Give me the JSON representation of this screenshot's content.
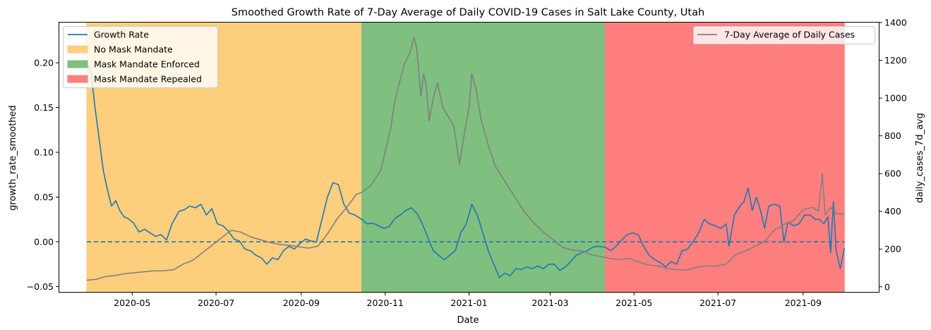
{
  "chart_data": {
    "type": "line",
    "title": "Smoothed Growth Rate of 7-Day Average of Daily COVID-19 Cases in Salt Lake County, Utah",
    "xlabel": "Date",
    "ylabel_left": "growth_rate_smoothed",
    "ylabel_right": "daily_cases_7d_avg",
    "x_ticks": [
      "2020-05",
      "2020-07",
      "2020-09",
      "2020-11",
      "2021-01",
      "2021-03",
      "2021-05",
      "2021-07",
      "2021-09"
    ],
    "xlim": [
      "2020-03-09",
      "2021-10-26"
    ],
    "ylim_left": [
      -0.056,
      0.245
    ],
    "yticks_left": [
      "−0.05",
      "0.00",
      "0.05",
      "0.10",
      "0.15",
      "0.20"
    ],
    "ylim_right": [
      -27,
      1400
    ],
    "yticks_right": [
      "0",
      "200",
      "400",
      "600",
      "800",
      "1000",
      "1200",
      "1400"
    ],
    "grid": false,
    "legends": [
      {
        "placement": "top-left",
        "entries": [
          "Growth Rate",
          "No Mask Mandate",
          "Mask Mandate Enforced",
          "Mask Mandate Repealed"
        ]
      },
      {
        "placement": "top-right",
        "entries": [
          "7-Day Average of Daily Cases"
        ]
      }
    ],
    "periods": [
      {
        "name": "No Mask Mandate",
        "start": "2020-03-29",
        "end": "2020-10-15",
        "color": "#fdcf7d"
      },
      {
        "name": "Mask Mandate Enforced",
        "start": "2020-10-15",
        "end": "2021-04-10",
        "color": "#7fbf7f"
      },
      {
        "name": "Mask Mandate Repealed",
        "start": "2021-04-10",
        "end": "2021-10-01",
        "color": "#ff7f7f"
      }
    ],
    "reference_line": {
      "y": 0.0,
      "style": "dashed",
      "color": "#1f77b4"
    },
    "series": [
      {
        "name": "Growth Rate",
        "axis": "left",
        "color": "#1f77b4",
        "points": [
          [
            "2020-03-29",
            0.2
          ],
          [
            "2020-04-01",
            0.19
          ],
          [
            "2020-04-04",
            0.15
          ],
          [
            "2020-04-07",
            0.115
          ],
          [
            "2020-04-10",
            0.08
          ],
          [
            "2020-04-13",
            0.058
          ],
          [
            "2020-04-16",
            0.04
          ],
          [
            "2020-04-19",
            0.046
          ],
          [
            "2020-04-22",
            0.035
          ],
          [
            "2020-04-25",
            0.028
          ],
          [
            "2020-04-28",
            0.026
          ],
          [
            "2020-05-02",
            0.021
          ],
          [
            "2020-05-06",
            0.011
          ],
          [
            "2020-05-10",
            0.014
          ],
          [
            "2020-05-14",
            0.01
          ],
          [
            "2020-05-18",
            0.006
          ],
          [
            "2020-05-22",
            0.008
          ],
          [
            "2020-05-26",
            0.002
          ],
          [
            "2020-05-30",
            0.02
          ],
          [
            "2020-06-04",
            0.034
          ],
          [
            "2020-06-08",
            0.036
          ],
          [
            "2020-06-12",
            0.04
          ],
          [
            "2020-06-16",
            0.038
          ],
          [
            "2020-06-20",
            0.042
          ],
          [
            "2020-06-24",
            0.03
          ],
          [
            "2020-06-28",
            0.037
          ],
          [
            "2020-07-02",
            0.02
          ],
          [
            "2020-07-06",
            0.018
          ],
          [
            "2020-07-10",
            0.012
          ],
          [
            "2020-07-14",
            0.003
          ],
          [
            "2020-07-18",
            0.001
          ],
          [
            "2020-07-22",
            -0.008
          ],
          [
            "2020-07-26",
            -0.01
          ],
          [
            "2020-07-30",
            -0.015
          ],
          [
            "2020-08-03",
            -0.018
          ],
          [
            "2020-08-07",
            -0.025
          ],
          [
            "2020-08-11",
            -0.018
          ],
          [
            "2020-08-15",
            -0.02
          ],
          [
            "2020-08-19",
            -0.01
          ],
          [
            "2020-08-23",
            -0.005
          ],
          [
            "2020-08-27",
            -0.008
          ],
          [
            "2020-08-31",
            -0.002
          ],
          [
            "2020-09-04",
            0.003
          ],
          [
            "2020-09-08",
            0.001
          ],
          [
            "2020-09-12",
            0.0
          ],
          [
            "2020-09-16",
            0.025
          ],
          [
            "2020-09-20",
            0.05
          ],
          [
            "2020-09-24",
            0.066
          ],
          [
            "2020-09-28",
            0.064
          ],
          [
            "2020-10-02",
            0.042
          ],
          [
            "2020-10-06",
            0.032
          ],
          [
            "2020-10-10",
            0.03
          ],
          [
            "2020-10-15",
            0.025
          ],
          [
            "2020-10-19",
            0.02
          ],
          [
            "2020-10-23",
            0.021
          ],
          [
            "2020-10-27",
            0.018
          ],
          [
            "2020-10-31",
            0.015
          ],
          [
            "2020-11-04",
            0.017
          ],
          [
            "2020-11-08",
            0.026
          ],
          [
            "2020-11-12",
            0.03
          ],
          [
            "2020-11-16",
            0.035
          ],
          [
            "2020-11-20",
            0.038
          ],
          [
            "2020-11-24",
            0.032
          ],
          [
            "2020-11-28",
            0.02
          ],
          [
            "2020-12-02",
            0.005
          ],
          [
            "2020-12-06",
            -0.01
          ],
          [
            "2020-12-10",
            -0.015
          ],
          [
            "2020-12-14",
            -0.02
          ],
          [
            "2020-12-18",
            -0.015
          ],
          [
            "2020-12-22",
            -0.01
          ],
          [
            "2020-12-26",
            0.01
          ],
          [
            "2020-12-30",
            0.02
          ],
          [
            "2021-01-03",
            0.042
          ],
          [
            "2021-01-07",
            0.03
          ],
          [
            "2021-01-11",
            0.01
          ],
          [
            "2021-01-15",
            -0.01
          ],
          [
            "2021-01-19",
            -0.025
          ],
          [
            "2021-01-23",
            -0.04
          ],
          [
            "2021-01-27",
            -0.035
          ],
          [
            "2021-01-31",
            -0.038
          ],
          [
            "2021-02-04",
            -0.03
          ],
          [
            "2021-02-08",
            -0.031
          ],
          [
            "2021-02-12",
            -0.028
          ],
          [
            "2021-02-16",
            -0.03
          ],
          [
            "2021-02-20",
            -0.027
          ],
          [
            "2021-02-24",
            -0.03
          ],
          [
            "2021-02-28",
            -0.025
          ],
          [
            "2021-03-04",
            -0.025
          ],
          [
            "2021-03-08",
            -0.032
          ],
          [
            "2021-03-12",
            -0.028
          ],
          [
            "2021-03-16",
            -0.022
          ],
          [
            "2021-03-20",
            -0.015
          ],
          [
            "2021-03-24",
            -0.012
          ],
          [
            "2021-03-28",
            -0.01
          ],
          [
            "2021-04-01",
            -0.006
          ],
          [
            "2021-04-05",
            -0.005
          ],
          [
            "2021-04-10",
            -0.006
          ],
          [
            "2021-04-14",
            -0.01
          ],
          [
            "2021-04-18",
            -0.005
          ],
          [
            "2021-04-22",
            0.002
          ],
          [
            "2021-04-26",
            0.008
          ],
          [
            "2021-04-30",
            0.01
          ],
          [
            "2021-05-04",
            0.008
          ],
          [
            "2021-05-08",
            -0.005
          ],
          [
            "2021-05-12",
            -0.015
          ],
          [
            "2021-05-16",
            -0.02
          ],
          [
            "2021-05-20",
            -0.023
          ],
          [
            "2021-05-24",
            -0.028
          ],
          [
            "2021-05-28",
            -0.022
          ],
          [
            "2021-06-01",
            -0.025
          ],
          [
            "2021-06-05",
            -0.01
          ],
          [
            "2021-06-09",
            -0.008
          ],
          [
            "2021-06-13",
            0.0
          ],
          [
            "2021-06-17",
            0.01
          ],
          [
            "2021-06-21",
            0.025
          ],
          [
            "2021-06-25",
            0.02
          ],
          [
            "2021-06-29",
            0.018
          ],
          [
            "2021-07-03",
            0.015
          ],
          [
            "2021-07-07",
            0.02
          ],
          [
            "2021-07-09",
            -0.005
          ],
          [
            "2021-07-13",
            0.03
          ],
          [
            "2021-07-17",
            0.04
          ],
          [
            "2021-07-20",
            0.045
          ],
          [
            "2021-07-23",
            0.06
          ],
          [
            "2021-07-26",
            0.035
          ],
          [
            "2021-07-29",
            0.05
          ],
          [
            "2021-08-01",
            0.035
          ],
          [
            "2021-08-04",
            0.015
          ],
          [
            "2021-08-07",
            0.04
          ],
          [
            "2021-08-11",
            0.042
          ],
          [
            "2021-08-15",
            0.04
          ],
          [
            "2021-08-18",
            0.0
          ],
          [
            "2021-08-21",
            0.022
          ],
          [
            "2021-08-25",
            0.018
          ],
          [
            "2021-08-29",
            0.02
          ],
          [
            "2021-09-02",
            0.03
          ],
          [
            "2021-09-06",
            0.03
          ],
          [
            "2021-09-10",
            0.025
          ],
          [
            "2021-09-13",
            0.025
          ],
          [
            "2021-09-16",
            0.02
          ],
          [
            "2021-09-19",
            0.028
          ],
          [
            "2021-09-21",
            -0.012
          ],
          [
            "2021-09-23",
            0.045
          ],
          [
            "2021-09-25",
            -0.01
          ],
          [
            "2021-09-28",
            -0.03
          ],
          [
            "2021-10-01",
            -0.007
          ]
        ]
      },
      {
        "name": "7-Day Average of Daily Cases",
        "axis": "right",
        "color": "#808080",
        "points": [
          [
            "2020-03-29",
            35
          ],
          [
            "2020-04-05",
            40
          ],
          [
            "2020-04-12",
            55
          ],
          [
            "2020-04-19",
            60
          ],
          [
            "2020-04-26",
            70
          ],
          [
            "2020-05-03",
            75
          ],
          [
            "2020-05-10",
            80
          ],
          [
            "2020-05-17",
            85
          ],
          [
            "2020-05-24",
            85
          ],
          [
            "2020-05-31",
            90
          ],
          [
            "2020-06-07",
            120
          ],
          [
            "2020-06-14",
            140
          ],
          [
            "2020-06-21",
            180
          ],
          [
            "2020-06-28",
            220
          ],
          [
            "2020-07-05",
            260
          ],
          [
            "2020-07-12",
            300
          ],
          [
            "2020-07-19",
            290
          ],
          [
            "2020-07-26",
            265
          ],
          [
            "2020-08-02",
            250
          ],
          [
            "2020-08-09",
            235
          ],
          [
            "2020-08-16",
            225
          ],
          [
            "2020-08-23",
            220
          ],
          [
            "2020-08-30",
            212
          ],
          [
            "2020-09-06",
            205
          ],
          [
            "2020-09-13",
            215
          ],
          [
            "2020-09-20",
            280
          ],
          [
            "2020-09-27",
            360
          ],
          [
            "2020-10-04",
            420
          ],
          [
            "2020-10-11",
            490
          ],
          [
            "2020-10-15",
            500
          ],
          [
            "2020-10-22",
            540
          ],
          [
            "2020-10-29",
            620
          ],
          [
            "2020-11-05",
            840
          ],
          [
            "2020-11-08",
            980
          ],
          [
            "2020-11-12",
            1100
          ],
          [
            "2020-11-15",
            1180
          ],
          [
            "2020-11-19",
            1240
          ],
          [
            "2020-11-22",
            1320
          ],
          [
            "2020-11-24",
            1260
          ],
          [
            "2020-11-27",
            1010
          ],
          [
            "2020-11-29",
            1130
          ],
          [
            "2020-12-01",
            1060
          ],
          [
            "2020-12-03",
            880
          ],
          [
            "2020-12-06",
            1000
          ],
          [
            "2020-12-09",
            1080
          ],
          [
            "2020-12-13",
            950
          ],
          [
            "2020-12-17",
            900
          ],
          [
            "2020-12-21",
            850
          ],
          [
            "2020-12-25",
            650
          ],
          [
            "2020-12-29",
            830
          ],
          [
            "2021-01-01",
            950
          ],
          [
            "2021-01-03",
            1130
          ],
          [
            "2021-01-06",
            1050
          ],
          [
            "2021-01-10",
            880
          ],
          [
            "2021-01-15",
            750
          ],
          [
            "2021-01-20",
            640
          ],
          [
            "2021-01-27",
            560
          ],
          [
            "2021-02-03",
            480
          ],
          [
            "2021-02-10",
            400
          ],
          [
            "2021-02-17",
            340
          ],
          [
            "2021-02-24",
            290
          ],
          [
            "2021-03-03",
            250
          ],
          [
            "2021-03-10",
            210
          ],
          [
            "2021-03-17",
            195
          ],
          [
            "2021-03-24",
            190
          ],
          [
            "2021-03-31",
            170
          ],
          [
            "2021-04-07",
            160
          ],
          [
            "2021-04-14",
            150
          ],
          [
            "2021-04-21",
            145
          ],
          [
            "2021-04-28",
            150
          ],
          [
            "2021-05-05",
            130
          ],
          [
            "2021-05-12",
            115
          ],
          [
            "2021-05-19",
            110
          ],
          [
            "2021-05-26",
            95
          ],
          [
            "2021-06-02",
            90
          ],
          [
            "2021-06-09",
            90
          ],
          [
            "2021-06-16",
            105
          ],
          [
            "2021-06-23",
            110
          ],
          [
            "2021-06-30",
            110
          ],
          [
            "2021-07-07",
            120
          ],
          [
            "2021-07-14",
            170
          ],
          [
            "2021-07-21",
            190
          ],
          [
            "2021-07-28",
            215
          ],
          [
            "2021-08-04",
            240
          ],
          [
            "2021-08-11",
            300
          ],
          [
            "2021-08-18",
            330
          ],
          [
            "2021-08-25",
            350
          ],
          [
            "2021-09-01",
            410
          ],
          [
            "2021-09-08",
            420
          ],
          [
            "2021-09-12",
            400
          ],
          [
            "2021-09-15",
            600
          ],
          [
            "2021-09-17",
            380
          ],
          [
            "2021-09-21",
            420
          ],
          [
            "2021-09-25",
            390
          ],
          [
            "2021-10-01",
            385
          ]
        ]
      }
    ]
  }
}
